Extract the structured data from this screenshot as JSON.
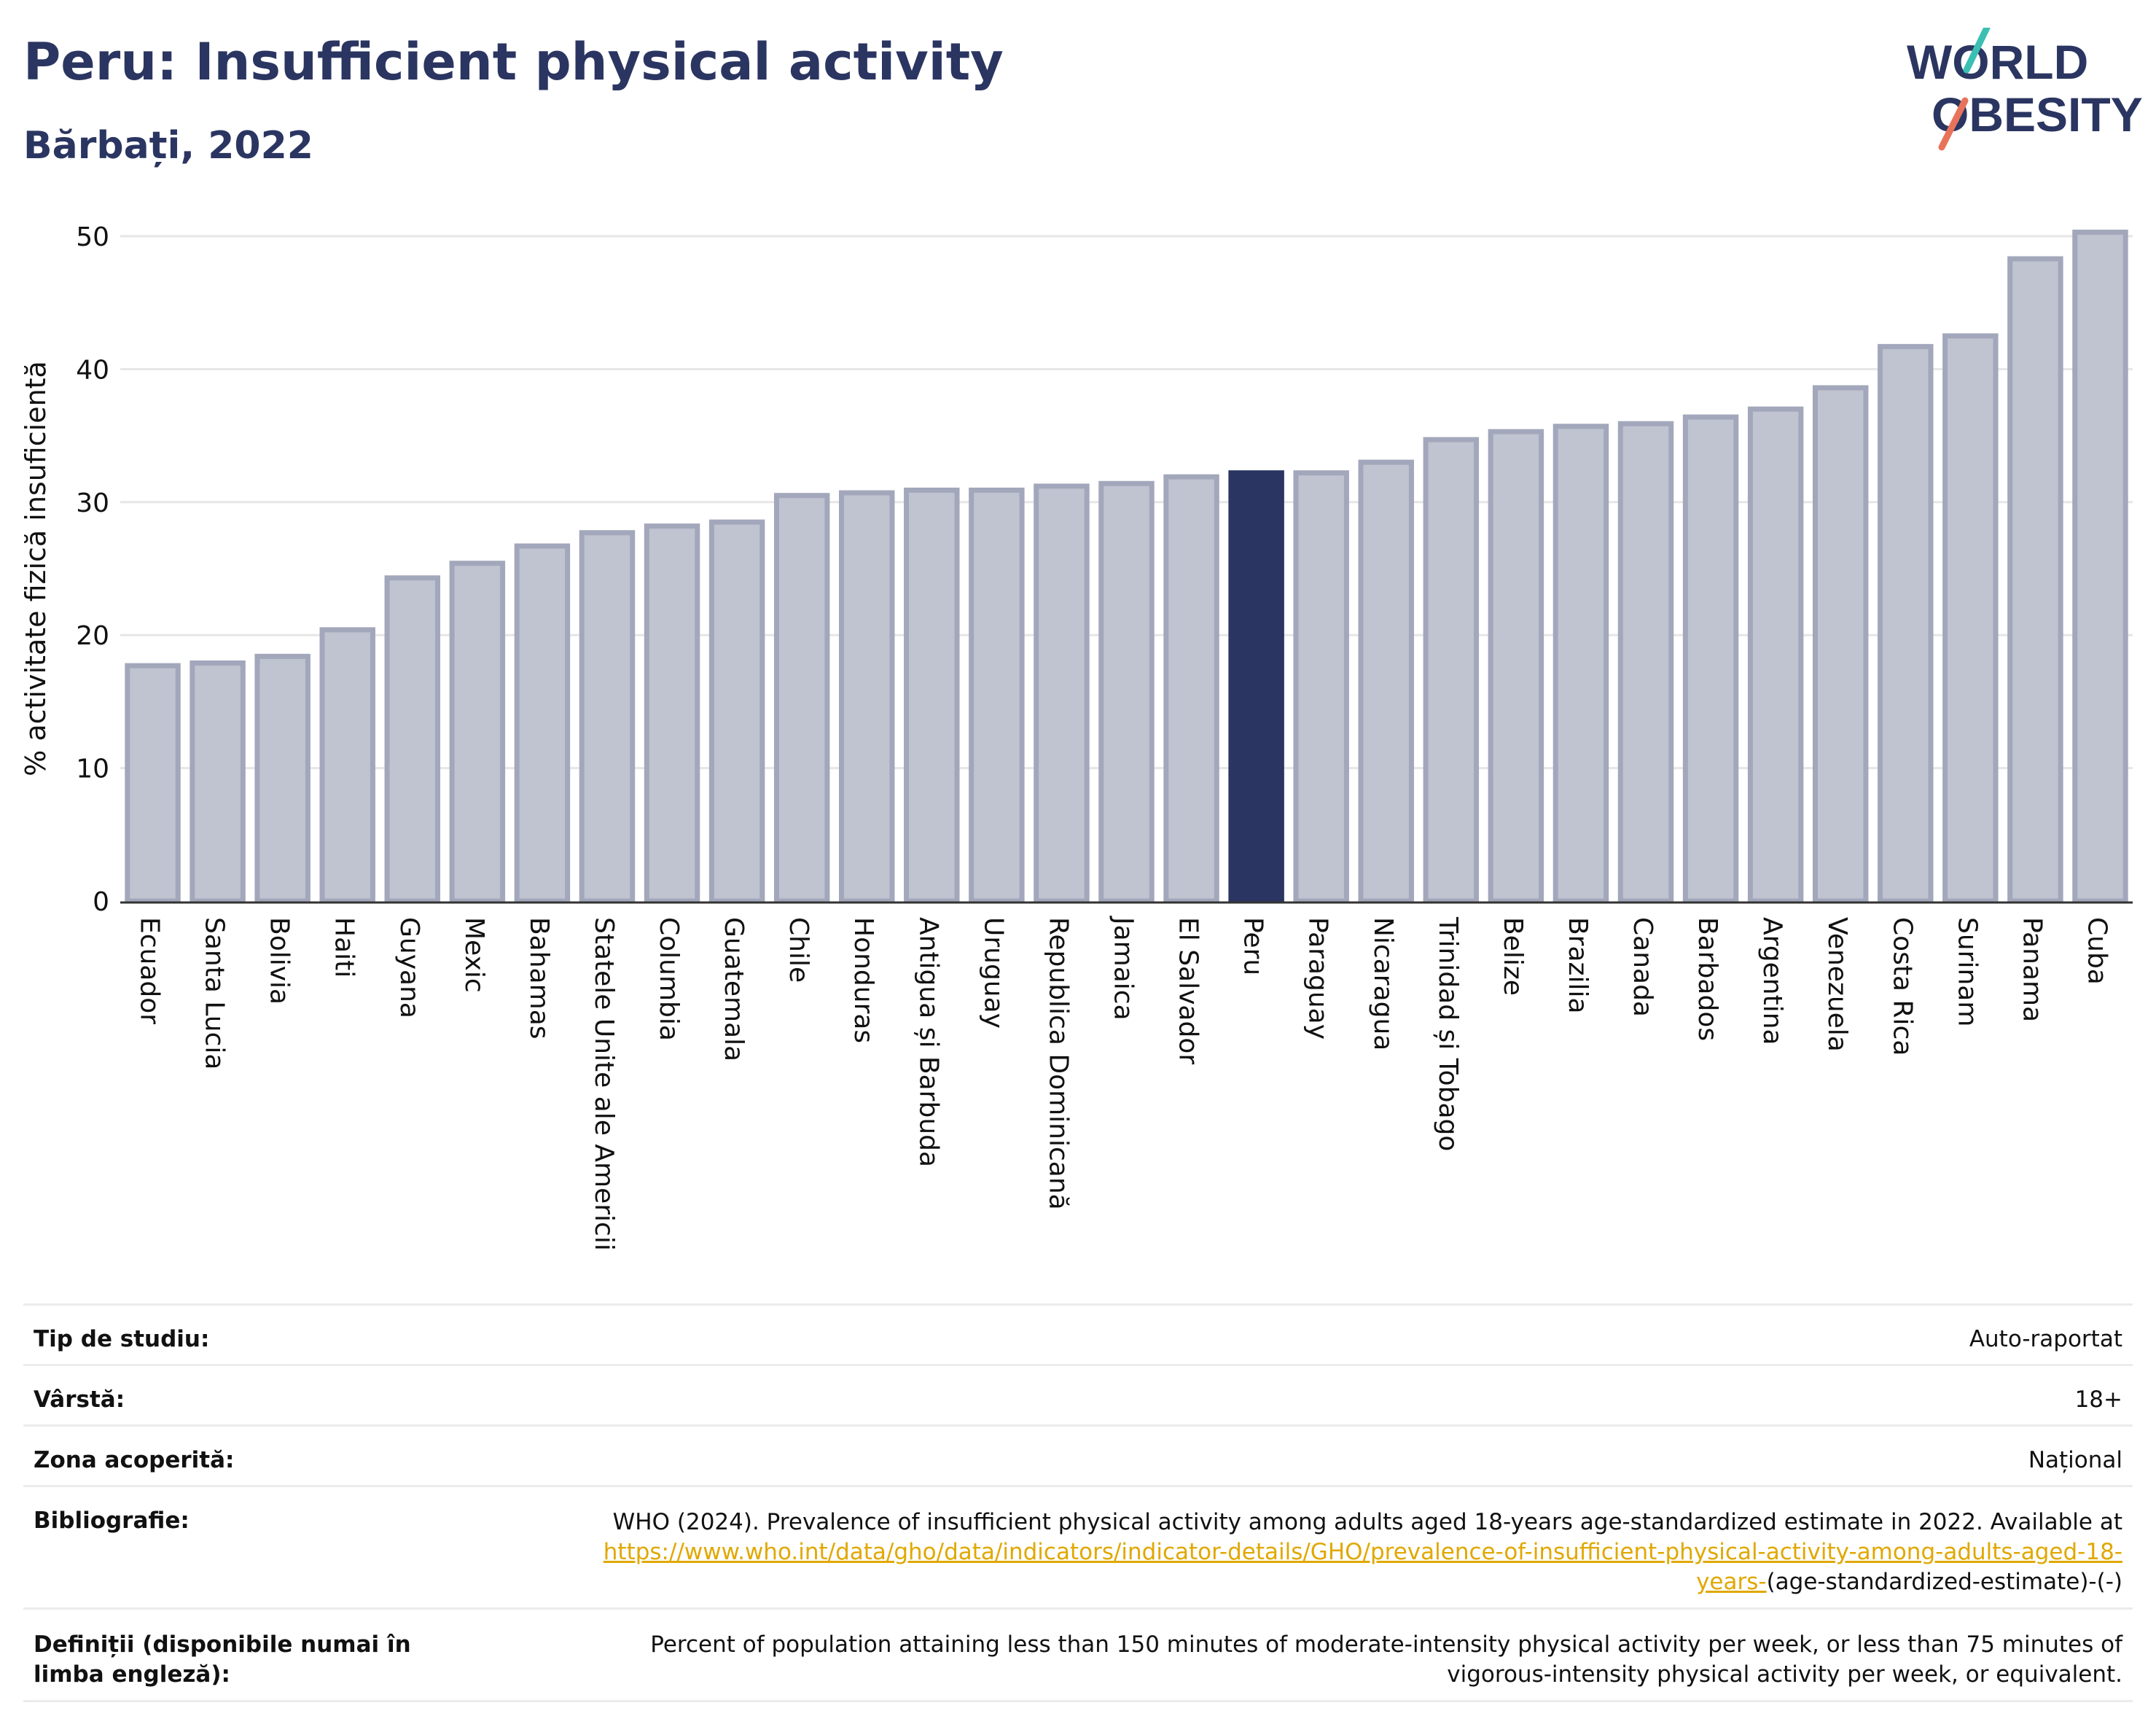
{
  "header": {
    "title": "Peru: Insufficient physical activity",
    "subtitle": "Bărbați, 2022"
  },
  "logo": {
    "line1": "WORLD",
    "line2": "OBESITY"
  },
  "colors": {
    "highlight": "#2b3561",
    "bar_fill": "#c0c3d0",
    "bar_stroke": "#a3a7bb",
    "grid": "#e6e6e6"
  },
  "chart_data": {
    "type": "bar",
    "ylabel": "% activitate fizică insuficientă",
    "xlabel": "",
    "ylim": [
      0,
      50
    ],
    "yticks": [
      0,
      10,
      20,
      30,
      40,
      50
    ],
    "grid": true,
    "highlight": "Peru",
    "categories": [
      "Ecuador",
      "Santa Lucia",
      "Bolivia",
      "Haiti",
      "Guyana",
      "Mexic",
      "Bahamas",
      "Statele Unite ale Americii",
      "Columbia",
      "Guatemala",
      "Chile",
      "Honduras",
      "Antigua și Barbuda",
      "Uruguay",
      "Republica Dominicană",
      "Jamaica",
      "El Salvador",
      "Peru",
      "Paraguay",
      "Nicaragua",
      "Trinidad și Tobago",
      "Belize",
      "Brazilia",
      "Canada",
      "Barbados",
      "Argentina",
      "Venezuela",
      "Costa Rica",
      "Surinam",
      "Panama",
      "Cuba"
    ],
    "values": [
      17.7,
      17.9,
      18.4,
      20.4,
      24.3,
      25.4,
      26.7,
      27.7,
      28.2,
      28.5,
      30.5,
      30.7,
      30.9,
      30.9,
      31.2,
      31.4,
      31.9,
      32.2,
      32.2,
      33.0,
      34.7,
      35.3,
      35.7,
      35.9,
      36.4,
      37.0,
      38.6,
      41.7,
      42.5,
      48.3,
      50.3
    ]
  },
  "meta": {
    "study_type": {
      "label": "Tip de studiu:",
      "value": "Auto-raportat"
    },
    "age": {
      "label": "Vârstă:",
      "value": "18+"
    },
    "coverage": {
      "label": "Zona acoperită:",
      "value": "Național"
    },
    "bibliography": {
      "label": "Bibliografie:",
      "text": "WHO (2024). Prevalence of insufficient physical activity among adults aged 18-years age-standardized estimate in 2022. Available at",
      "link": "https://www.who.int/data/gho/data/indicators/indicator-details/GHO/prevalence-of-insufficient-physical-activity-among-adults-aged-18-years-",
      "suffix": "(age-standardized-estimate)-(-)"
    },
    "definitions": {
      "label": "Definiții (disponibile numai în limba engleză):",
      "value": "Percent of population attaining less than 150 minutes of moderate-intensity physical activity per week, or less than 75 minutes of vigorous-intensity physical activity per week, or equivalent."
    }
  }
}
